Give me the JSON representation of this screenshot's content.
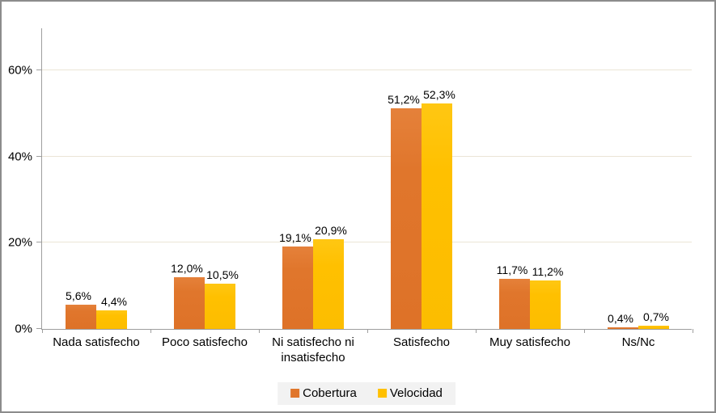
{
  "chart_data": {
    "type": "bar",
    "categories": [
      "Nada satisfecho",
      "Poco satisfecho",
      "Ni satisfecho ni insatisfecho",
      "Satisfecho",
      "Muy satisfecho",
      "Ns/Nc"
    ],
    "series": [
      {
        "name": "Cobertura",
        "color": "#E0762C",
        "values": [
          5.6,
          12.0,
          19.1,
          51.2,
          11.7,
          0.4
        ],
        "labels": [
          "5,6%",
          "12,0%",
          "19,1%",
          "51,2%",
          "11,7%",
          "0,4%"
        ]
      },
      {
        "name": "Velocidad",
        "color": "#FFC000",
        "values": [
          4.4,
          10.5,
          20.9,
          52.3,
          11.2,
          0.7
        ],
        "labels": [
          "4,4%",
          "10,5%",
          "20,9%",
          "52,3%",
          "11,2%",
          "0,7%"
        ]
      }
    ],
    "title": "",
    "xlabel": "",
    "ylabel": "",
    "ylim": [
      0,
      70
    ],
    "yticks": [
      {
        "value": 0,
        "label": "0%"
      },
      {
        "value": 20,
        "label": "20%"
      },
      {
        "value": 40,
        "label": "40%"
      },
      {
        "value": 60,
        "label": "60%"
      }
    ],
    "grid": true,
    "legend_position": "bottom"
  },
  "legend": {
    "items": [
      {
        "label": "Cobertura",
        "color": "#E0762C"
      },
      {
        "label": "Velocidad",
        "color": "#FFC000"
      }
    ]
  },
  "colors": {
    "cobertura": "#E0762C",
    "velocidad": "#FFC000",
    "gridline": "#EBE5D6",
    "axis": "#9E9E9E",
    "legend_background": "#F2F2F2",
    "border": "#8C8C8C",
    "text": "#000000"
  }
}
